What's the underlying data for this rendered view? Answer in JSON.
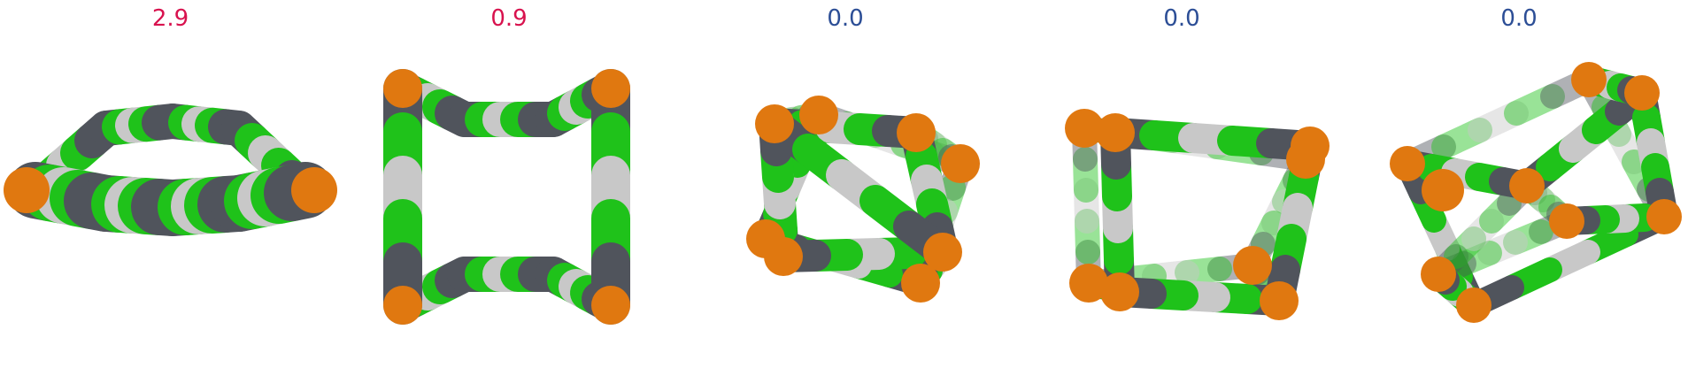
{
  "colors": {
    "dark": "#50545c",
    "green": "#1fc21a",
    "light": "#c8c8c8",
    "orange": "#e07810",
    "highlight_score": "#d8124e",
    "zero_score": "#2c4e96"
  },
  "panels": [
    {
      "score": "2.9",
      "score_color": "#d8124e"
    },
    {
      "score": "0.9",
      "score_color": "#d8124e"
    },
    {
      "score": "0.0",
      "score_color": "#2c4e96"
    },
    {
      "score": "0.0",
      "score_color": "#2c4e96"
    },
    {
      "score": "0.0",
      "score_color": "#2c4e96"
    }
  ]
}
